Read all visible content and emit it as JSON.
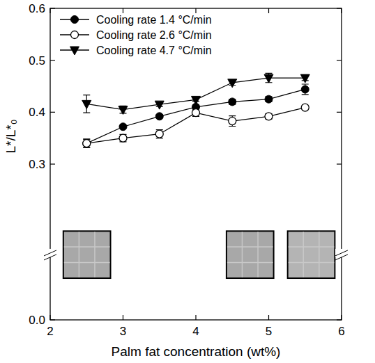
{
  "chart_data": {
    "type": "line",
    "xlabel": "Palm fat concentration (wt%)",
    "ylabel": "L*/L*₀",
    "x": [
      2.5,
      3,
      3.5,
      4,
      4.5,
      5,
      5.5
    ],
    "series": [
      {
        "name": "Cooling rate 1.4 °C/min",
        "color": "#000000",
        "marker": "circle",
        "values": [
          0.34,
          0.372,
          0.392,
          0.41,
          0.42,
          0.425,
          0.444
        ],
        "errors": [
          0.008,
          0.003,
          0.003,
          0.004,
          0.005,
          0.005,
          0.01
        ]
      },
      {
        "name": "Cooling rate 2.6 °C/min",
        "color": "#000000",
        "marker": "open-circle",
        "values": [
          0.34,
          0.35,
          0.358,
          0.399,
          0.383,
          0.392,
          0.409
        ],
        "errors": [
          0.008,
          0.007,
          0.008,
          0.007,
          0.01,
          0.005,
          0.003
        ]
      },
      {
        "name": "Cooling rate 4.7 °C/min",
        "color": "#000000",
        "marker": "triangle-down",
        "values": [
          0.416,
          0.405,
          0.415,
          0.424,
          0.457,
          0.466,
          0.466
        ],
        "errors": [
          0.017,
          0.007,
          0.004,
          0.003,
          0.005,
          0.009,
          0.005
        ]
      }
    ],
    "xlim": [
      2,
      6
    ],
    "xticks": [
      2,
      3,
      4,
      5,
      6
    ],
    "ylim": [
      0,
      0.6
    ],
    "yticks": [
      {
        "value": 0,
        "label": "0.0"
      },
      0.3,
      0.4,
      0.5,
      0.6
    ],
    "legend": "upper left",
    "grid": false
  }
}
